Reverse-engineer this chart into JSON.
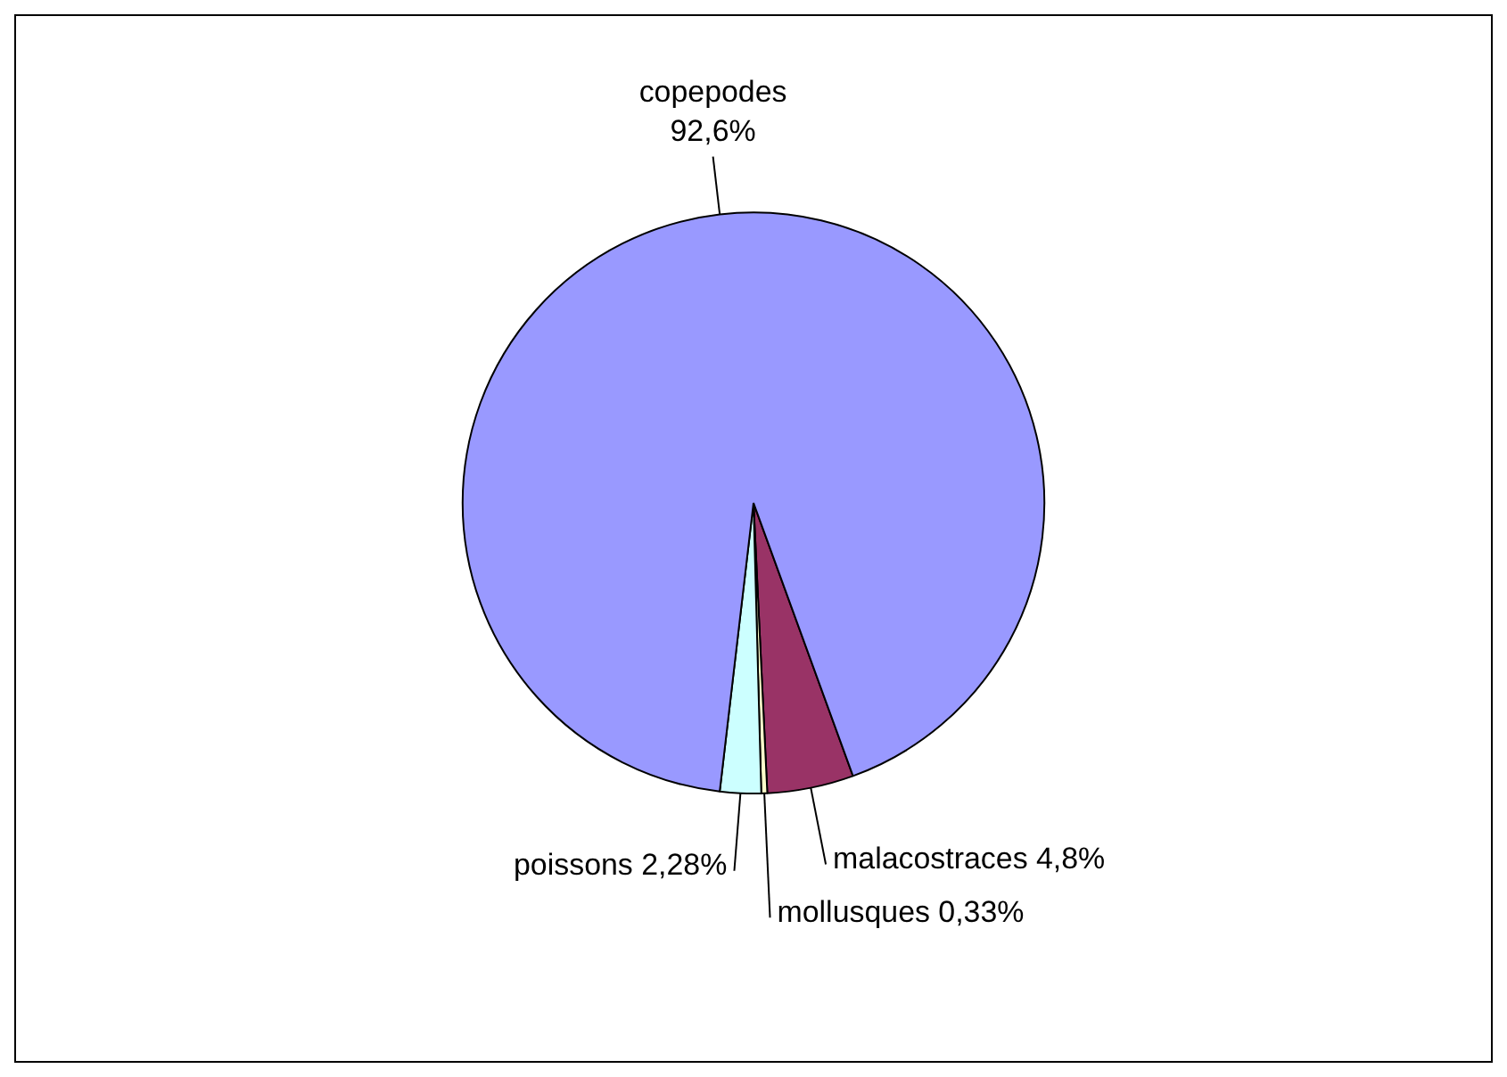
{
  "chart_data": {
    "type": "pie",
    "categories": [
      "malacostraces",
      "mollusques",
      "poissons",
      "copepodes"
    ],
    "values": [
      4.8,
      0.33,
      2.28,
      92.6
    ],
    "colors": [
      "#993366",
      "#ffffcc",
      "#ccffff",
      "#9999ff"
    ],
    "value_labels": [
      "4,8%",
      "0,33%",
      "2,28%",
      "92,6%"
    ]
  }
}
